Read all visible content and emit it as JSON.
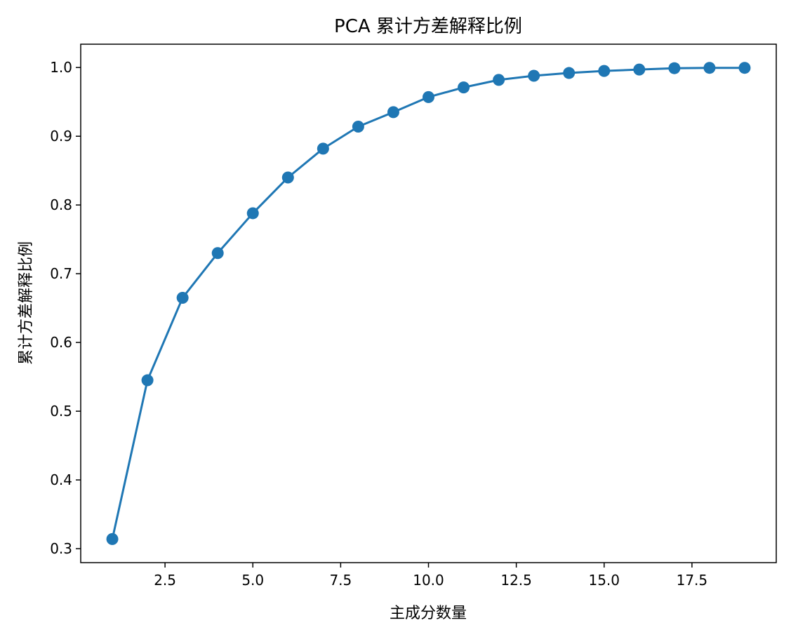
{
  "chart_data": {
    "type": "line",
    "title": "PCA 累计方差解释比例",
    "xlabel": "主成分数量",
    "ylabel": "累计方差解释比例",
    "x": [
      1,
      2,
      3,
      4,
      5,
      6,
      7,
      8,
      9,
      10,
      11,
      12,
      13,
      14,
      15,
      16,
      17,
      18,
      19
    ],
    "y": [
      0.314,
      0.545,
      0.665,
      0.73,
      0.788,
      0.84,
      0.882,
      0.914,
      0.935,
      0.957,
      0.971,
      0.982,
      0.988,
      0.992,
      0.995,
      0.997,
      0.999,
      0.9995,
      0.9995
    ],
    "xlim": [
      0.1,
      19.9
    ],
    "ylim": [
      0.2797,
      1.0339
    ],
    "xticks": [
      2.5,
      5.0,
      7.5,
      10.0,
      12.5,
      15.0,
      17.5
    ],
    "xtick_labels": [
      "2.5",
      "5.0",
      "7.5",
      "10.0",
      "12.5",
      "15.0",
      "17.5"
    ],
    "yticks": [
      0.3,
      0.4,
      0.5,
      0.6,
      0.7,
      0.8,
      0.9,
      1.0
    ],
    "ytick_labels": [
      "0.3",
      "0.4",
      "0.5",
      "0.6",
      "0.7",
      "0.8",
      "0.9",
      "1.0"
    ],
    "grid": false,
    "marker": "circle",
    "line_color": "#1f77b4"
  }
}
